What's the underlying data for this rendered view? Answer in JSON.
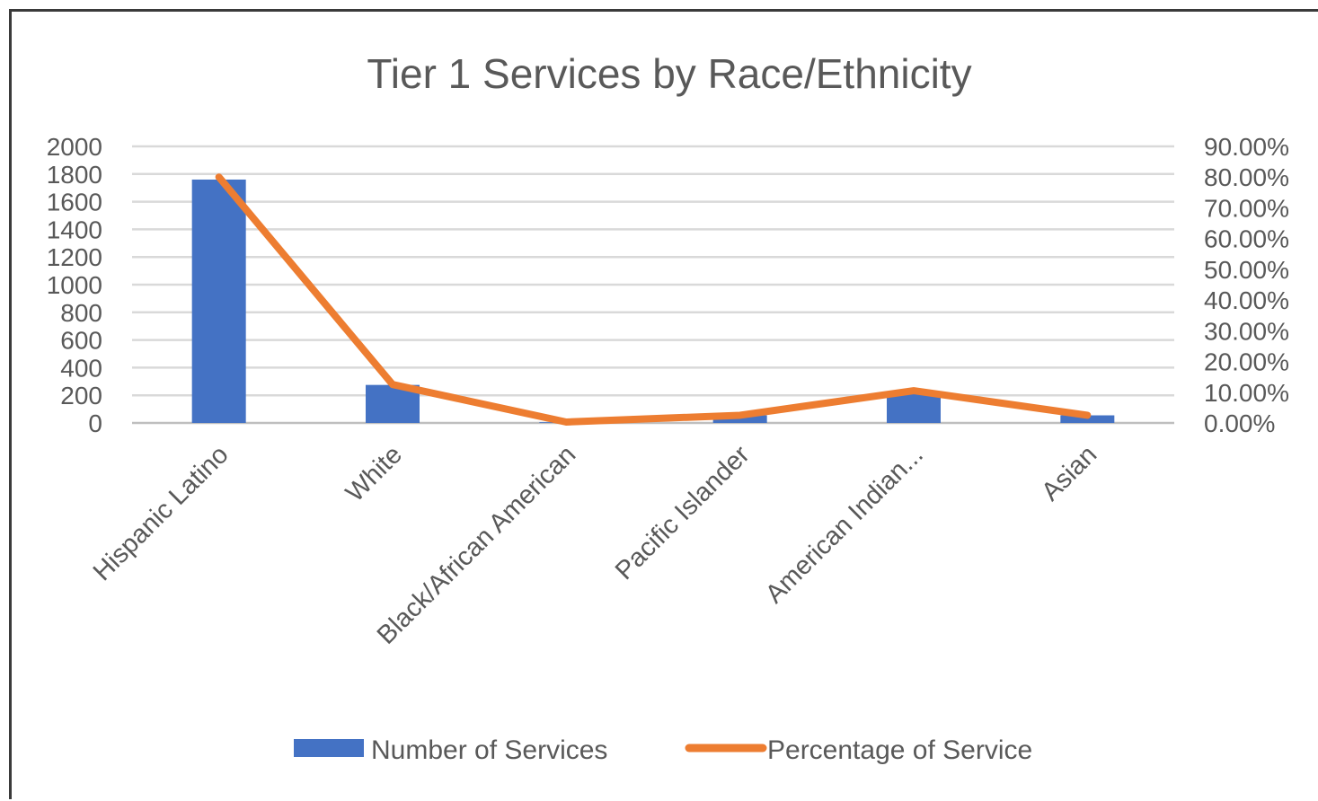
{
  "chart_data": {
    "type": "bar",
    "title": "Tier 1 Services by Race/Ethnicity",
    "categories": [
      "Hispanic Latino",
      "White",
      "Black/African American",
      "Pacific Islander",
      "American Indian...",
      "Asian"
    ],
    "series": [
      {
        "name": "Number of Services",
        "kind": "bar",
        "axis": "left",
        "color": "#4472C4",
        "values": [
          1760,
          275,
          5,
          55,
          230,
          55
        ]
      },
      {
        "name": "Percentage of Service",
        "kind": "line",
        "axis": "right",
        "color": "#ED7D31",
        "values": [
          80.0,
          12.5,
          0.3,
          2.5,
          10.5,
          2.5
        ]
      }
    ],
    "y_left": {
      "min": 0,
      "max": 2000,
      "step": 200,
      "tick_labels": [
        "0",
        "200",
        "400",
        "600",
        "800",
        "1000",
        "1200",
        "1400",
        "1600",
        "1800",
        "2000"
      ]
    },
    "y_right": {
      "min": 0,
      "max": 90,
      "step": 10,
      "tick_labels": [
        "0.00%",
        "10.00%",
        "20.00%",
        "30.00%",
        "40.00%",
        "50.00%",
        "60.00%",
        "70.00%",
        "80.00%",
        "90.00%"
      ]
    },
    "grid": true,
    "legend": "bottom"
  }
}
